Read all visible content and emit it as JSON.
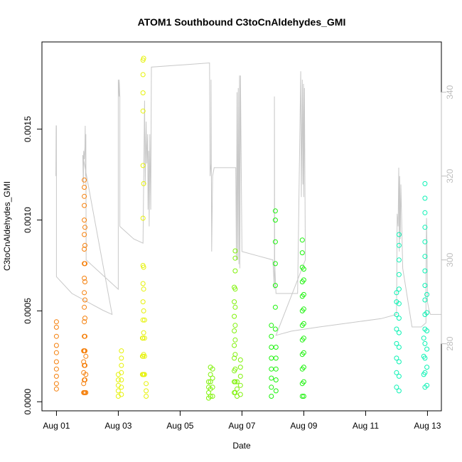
{
  "chart_data": {
    "type": "scatter",
    "title": "ATOM1 Southbound C3toCnAldehydes_GMI",
    "xlabel": "Date",
    "ylabel": "C3toCnAldehydes_GMI",
    "x_ticks": [
      "Aug 01",
      "Aug 03",
      "Aug 05",
      "Aug 07",
      "Aug 09",
      "Aug 11",
      "Aug 13"
    ],
    "x_tick_days": [
      1,
      3,
      5,
      7,
      9,
      11,
      13
    ],
    "xlim_days": [
      0.53,
      13.45
    ],
    "y_ticks": [
      "0.0000",
      "0.0005",
      "0.0010",
      "0.0015"
    ],
    "y_tick_values": [
      0,
      0.0005,
      0.001,
      0.0015
    ],
    "ylim": [
      -5e-05,
      0.00198
    ],
    "y2_ticks": [
      "280",
      "300",
      "320",
      "340"
    ],
    "y2_tick_values": [
      280,
      300,
      320,
      340
    ],
    "y2lim": [
      264,
      352
    ],
    "grid": false,
    "legend": "none",
    "series": [
      {
        "color": "#f57f0a",
        "points": [
          [
            1.0,
            7e-05
          ],
          [
            1.0,
            0.0001
          ],
          [
            1.0,
            0.00014
          ],
          [
            1.0,
            0.00018
          ],
          [
            1.0,
            0.00022
          ],
          [
            1.0,
            0.00027
          ],
          [
            1.0,
            0.00031
          ],
          [
            1.0,
            0.00036
          ],
          [
            1.0,
            0.00041
          ],
          [
            1.0,
            0.00044
          ],
          [
            1.88,
            5e-05
          ],
          [
            1.88,
            0.0001
          ],
          [
            1.88,
            0.00016
          ],
          [
            1.88,
            0.00022
          ],
          [
            1.88,
            0.00028
          ],
          [
            1.9,
            5e-05
          ],
          [
            1.9,
            0.00012
          ],
          [
            1.9,
            0.0002
          ],
          [
            1.9,
            0.00028
          ],
          [
            1.9,
            0.00036
          ],
          [
            1.9,
            0.00044
          ],
          [
            1.9,
            0.00052
          ],
          [
            1.9,
            0.0006
          ],
          [
            1.9,
            0.00068
          ],
          [
            1.9,
            0.00076
          ],
          [
            1.9,
            0.00084
          ],
          [
            1.9,
            0.00092
          ],
          [
            1.9,
            0.001
          ],
          [
            1.9,
            0.00108
          ],
          [
            1.9,
            0.00113
          ],
          [
            1.9,
            0.00118
          ],
          [
            1.9,
            0.00122
          ],
          [
            1.92,
            5e-05
          ],
          [
            1.92,
            0.00012
          ],
          [
            1.92,
            0.0002
          ],
          [
            1.92,
            0.00028
          ],
          [
            1.92,
            0.00036
          ],
          [
            1.92,
            0.00046
          ],
          [
            1.92,
            0.00056
          ],
          [
            1.92,
            0.00066
          ],
          [
            1.92,
            0.00076
          ],
          [
            1.92,
            0.00086
          ],
          [
            1.92,
            0.00096
          ],
          [
            1.95,
            5e-05
          ],
          [
            1.95,
            0.00015
          ],
          [
            1.95,
            0.00025
          ]
        ]
      },
      {
        "color": "#e6f20a",
        "points": [
          [
            3.0,
            3e-05
          ],
          [
            3.0,
            6e-05
          ],
          [
            3.0,
            9e-05
          ],
          [
            3.0,
            0.00012
          ],
          [
            3.0,
            0.00015
          ],
          [
            3.1,
            4e-05
          ],
          [
            3.1,
            8e-05
          ],
          [
            3.1,
            0.00012
          ],
          [
            3.1,
            0.00016
          ],
          [
            3.1,
            0.0002
          ],
          [
            3.1,
            0.00024
          ],
          [
            3.1,
            0.00028
          ],
          [
            3.78,
            0.00015
          ],
          [
            3.78,
            0.00025
          ],
          [
            3.78,
            0.00035
          ],
          [
            3.8,
            0.00015
          ],
          [
            3.8,
            0.00025
          ],
          [
            3.8,
            0.00035
          ],
          [
            3.8,
            0.00045
          ],
          [
            3.8,
            0.00055
          ],
          [
            3.8,
            0.00065
          ],
          [
            3.8,
            0.00075
          ],
          [
            3.8,
            0.00101
          ],
          [
            3.8,
            0.0013
          ],
          [
            3.8,
            0.0016
          ],
          [
            3.8,
            0.0017
          ],
          [
            3.8,
            0.0018
          ],
          [
            3.8,
            0.00188
          ],
          [
            3.82,
            0.00015
          ],
          [
            3.82,
            0.00026
          ],
          [
            3.82,
            0.00038
          ],
          [
            3.82,
            0.0005
          ],
          [
            3.82,
            0.00062
          ],
          [
            3.82,
            0.00074
          ],
          [
            3.82,
            0.0012
          ],
          [
            3.82,
            0.00189
          ],
          [
            3.85,
            0.00015
          ],
          [
            3.85,
            0.00025
          ],
          [
            3.85,
            0.00035
          ],
          [
            3.85,
            0.00045
          ],
          [
            3.9,
            3e-05
          ],
          [
            3.9,
            6e-05
          ],
          [
            3.9,
            0.0001
          ]
        ]
      },
      {
        "color": "#80f20a",
        "points": [
          [
            5.92,
            2e-05
          ],
          [
            5.92,
            5e-05
          ],
          [
            5.92,
            8e-05
          ],
          [
            5.92,
            0.00011
          ],
          [
            5.98,
            3e-05
          ],
          [
            5.98,
            7e-05
          ],
          [
            5.98,
            0.00011
          ],
          [
            5.98,
            0.00015
          ],
          [
            5.98,
            0.00019
          ],
          [
            6.05,
            3e-05
          ],
          [
            6.05,
            8e-05
          ],
          [
            6.05,
            0.00013
          ],
          [
            6.05,
            0.00018
          ],
          [
            6.75,
            5e-05
          ],
          [
            6.75,
            0.00011
          ],
          [
            6.75,
            0.00017
          ],
          [
            6.75,
            0.00024
          ],
          [
            6.75,
            0.00031
          ],
          [
            6.75,
            0.00039
          ],
          [
            6.75,
            0.00047
          ],
          [
            6.75,
            0.00055
          ],
          [
            6.75,
            0.00063
          ],
          [
            6.78,
            5e-05
          ],
          [
            6.78,
            0.00011
          ],
          [
            6.78,
            0.00018
          ],
          [
            6.78,
            0.00026
          ],
          [
            6.78,
            0.00034
          ],
          [
            6.78,
            0.00042
          ],
          [
            6.78,
            0.00052
          ],
          [
            6.78,
            0.00062
          ],
          [
            6.78,
            0.00072
          ],
          [
            6.78,
            0.00079
          ],
          [
            6.78,
            0.00083
          ],
          [
            6.84,
            3e-05
          ],
          [
            6.84,
            7e-05
          ],
          [
            6.84,
            0.00011
          ],
          [
            6.95,
            4e-05
          ],
          [
            6.95,
            9e-05
          ],
          [
            6.95,
            0.00014
          ],
          [
            6.95,
            0.00019
          ],
          [
            6.95,
            0.00023
          ]
        ]
      },
      {
        "color": "#1af20a",
        "points": [
          [
            7.95,
            3e-05
          ],
          [
            7.95,
            8e-05
          ],
          [
            7.95,
            0.00013
          ],
          [
            7.95,
            0.00018
          ],
          [
            7.95,
            0.00024
          ],
          [
            7.95,
            0.0003
          ],
          [
            7.95,
            0.00036
          ],
          [
            7.95,
            0.00042
          ],
          [
            8.1,
            6e-05
          ],
          [
            8.1,
            0.00012
          ],
          [
            8.1,
            0.00018
          ],
          [
            8.1,
            0.00024
          ],
          [
            8.1,
            0.0003
          ],
          [
            8.08,
            0.0004
          ],
          [
            8.08,
            0.00052
          ],
          [
            8.08,
            0.00064
          ],
          [
            8.08,
            0.00076
          ],
          [
            8.08,
            0.00088
          ],
          [
            8.08,
            0.001
          ],
          [
            8.08,
            0.00105
          ],
          [
            8.95,
            3e-05
          ],
          [
            8.95,
            0.0001
          ],
          [
            8.95,
            0.00018
          ],
          [
            8.95,
            0.00026
          ],
          [
            8.95,
            0.00034
          ],
          [
            8.95,
            0.00042
          ],
          [
            8.95,
            0.0005
          ],
          [
            8.95,
            0.00058
          ],
          [
            8.95,
            0.00066
          ],
          [
            8.95,
            0.00074
          ],
          [
            8.95,
            0.00082
          ],
          [
            8.95,
            0.00089
          ],
          [
            9.0,
            3e-05
          ],
          [
            9.0,
            0.00011
          ],
          [
            9.0,
            0.00019
          ],
          [
            9.0,
            0.00027
          ],
          [
            9.0,
            0.00035
          ],
          [
            9.0,
            0.00043
          ],
          [
            9.0,
            0.00051
          ],
          [
            9.0,
            0.00059
          ],
          [
            9.0,
            0.00067
          ],
          [
            9.0,
            0.00073
          ]
        ]
      },
      {
        "color": "#0af2b4",
        "points": [
          [
            12.0,
            8e-05
          ],
          [
            12.0,
            0.00016
          ],
          [
            12.0,
            0.00024
          ],
          [
            12.0,
            0.00032
          ],
          [
            12.0,
            0.0004
          ],
          [
            12.0,
            0.00048
          ],
          [
            12.0,
            0.00055
          ],
          [
            12.0,
            0.0006
          ],
          [
            12.08,
            6e-05
          ],
          [
            12.08,
            0.00014
          ],
          [
            12.08,
            0.00022
          ],
          [
            12.08,
            0.0003
          ],
          [
            12.08,
            0.00038
          ],
          [
            12.08,
            0.00046
          ],
          [
            12.08,
            0.00054
          ],
          [
            12.08,
            0.00062
          ],
          [
            12.08,
            0.0007
          ],
          [
            12.08,
            0.00078
          ],
          [
            12.08,
            0.00086
          ],
          [
            12.08,
            0.00092
          ],
          [
            12.88,
            0.00015
          ],
          [
            12.88,
            0.00025
          ],
          [
            12.88,
            0.00035
          ],
          [
            12.92,
            8e-05
          ],
          [
            12.92,
            0.00016
          ],
          [
            12.92,
            0.00024
          ],
          [
            12.92,
            0.00032
          ],
          [
            12.92,
            0.0004
          ],
          [
            12.92,
            0.00048
          ],
          [
            12.92,
            0.00056
          ],
          [
            12.92,
            0.00064
          ],
          [
            12.92,
            0.00072
          ],
          [
            12.92,
            0.0008
          ],
          [
            12.92,
            0.00088
          ],
          [
            12.92,
            0.00096
          ],
          [
            12.92,
            0.00104
          ],
          [
            12.92,
            0.00112
          ],
          [
            12.92,
            0.0012
          ],
          [
            12.98,
            9e-05
          ],
          [
            12.98,
            0.00019
          ],
          [
            12.98,
            0.00029
          ],
          [
            12.98,
            0.00039
          ],
          [
            12.98,
            0.00049
          ],
          [
            12.98,
            0.00059
          ]
        ]
      }
    ],
    "altitude_series": {
      "color": "#c8c8c8",
      "axis": "right",
      "points": [
        [
          0.98,
          320
        ],
        [
          0.99,
          332
        ],
        [
          1.0,
          332
        ],
        [
          1.0,
          296
        ],
        [
          1.5,
          292
        ],
        [
          2.0,
          290
        ],
        [
          2.5,
          288
        ],
        [
          2.8,
          287
        ],
        [
          1.85,
          325
        ],
        [
          1.87,
          318
        ],
        [
          1.88,
          326
        ],
        [
          1.9,
          324
        ],
        [
          1.92,
          327
        ],
        [
          1.93,
          332
        ],
        [
          1.94,
          320
        ],
        [
          1.95,
          330
        ],
        [
          1.96,
          300
        ],
        [
          3.0,
          293
        ],
        [
          3.0,
          343
        ],
        [
          3.03,
          339
        ],
        [
          3.03,
          343
        ],
        [
          3.05,
          339
        ],
        [
          3.05,
          338
        ],
        [
          3.05,
          308
        ],
        [
          3.2,
          307
        ],
        [
          3.5,
          305
        ],
        [
          3.8,
          304
        ],
        [
          3.85,
          338
        ],
        [
          3.87,
          318
        ],
        [
          3.9,
          333
        ],
        [
          3.92,
          323
        ],
        [
          3.95,
          330
        ],
        [
          3.96,
          312
        ],
        [
          3.98,
          326
        ],
        [
          4.0,
          308
        ],
        [
          4.02,
          330
        ],
        [
          4.05,
          312
        ],
        [
          4.07,
          346
        ],
        [
          5.95,
          347
        ],
        [
          5.97,
          320
        ],
        [
          6.0,
          323
        ],
        [
          6.0,
          343
        ],
        [
          6.02,
          302
        ],
        [
          6.05,
          320
        ],
        [
          6.1,
          322
        ],
        [
          6.5,
          322
        ],
        [
          6.8,
          322
        ],
        [
          6.82,
          300
        ],
        [
          6.84,
          340
        ],
        [
          6.86,
          300
        ],
        [
          6.88,
          341
        ],
        [
          6.9,
          299
        ],
        [
          6.92,
          344
        ],
        [
          6.93,
          298
        ],
        [
          6.95,
          344
        ],
        [
          7.0,
          302
        ],
        [
          7.5,
          301
        ],
        [
          8.0,
          300
        ],
        [
          8.05,
          293
        ],
        [
          8.05,
          339
        ],
        [
          8.06,
          299
        ],
        [
          8.1,
          292
        ],
        [
          8.5,
          292
        ],
        [
          8.8,
          292
        ],
        [
          8.9,
          345
        ],
        [
          8.92,
          315
        ],
        [
          8.95,
          343
        ],
        [
          8.97,
          318
        ],
        [
          8.99,
          342
        ],
        [
          9.0,
          315
        ],
        [
          9.02,
          341
        ],
        [
          9.05,
          300
        ],
        [
          8.1,
          282
        ],
        [
          8.6,
          283
        ],
        [
          9.5,
          284
        ],
        [
          10.5,
          285
        ],
        [
          11.5,
          286
        ],
        [
          12.0,
          287
        ],
        [
          12.02,
          311
        ],
        [
          12.05,
          308
        ],
        [
          12.07,
          322
        ],
        [
          12.09,
          302
        ],
        [
          12.1,
          320
        ],
        [
          12.12,
          305
        ],
        [
          12.14,
          318
        ],
        [
          12.2,
          298
        ],
        [
          12.5,
          284
        ],
        [
          12.8,
          284
        ],
        [
          12.95,
          285
        ],
        [
          12.95,
          295
        ],
        [
          12.97,
          310
        ],
        [
          12.99,
          300
        ],
        [
          13.0,
          290
        ],
        [
          13.05,
          288
        ],
        [
          13.1,
          287
        ],
        [
          13.45,
          287
        ]
      ]
    }
  }
}
